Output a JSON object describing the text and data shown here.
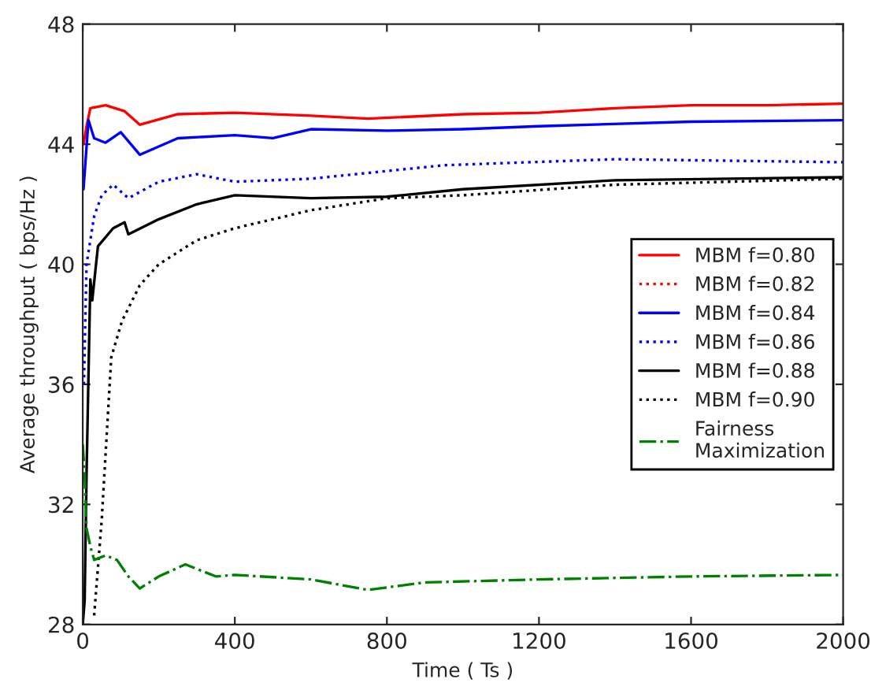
{
  "chart_data": {
    "type": "line",
    "xlabel": "Time ( Ts )",
    "ylabel": "Average throughput ( bps/Hz )",
    "xlim": [
      0,
      2000
    ],
    "xticks": [
      0,
      400,
      800,
      1200,
      1600,
      2000
    ],
    "ylim": [
      28,
      48
    ],
    "yticks": [
      28,
      32,
      36,
      40,
      44,
      48
    ],
    "grid": false,
    "legend": "right",
    "series": [
      {
        "name": "MBM f=0.80",
        "color": "#ff0000",
        "line_style": "solid",
        "x": [
          2,
          10,
          20,
          60,
          110,
          150,
          250,
          400,
          600,
          750,
          1000,
          1200,
          1400,
          1600,
          1800,
          2000
        ],
        "values": [
          44.0,
          44.6,
          45.2,
          45.3,
          45.1,
          44.65,
          45.0,
          45.05,
          44.95,
          44.85,
          45.0,
          45.05,
          45.2,
          45.3,
          45.3,
          45.35
        ]
      },
      {
        "name": "MBM f=0.82",
        "color": "#ff0000",
        "line_style": "dotted"
      },
      {
        "name": "MBM f=0.84",
        "color": "#0000ff",
        "line_style": "solid",
        "x": [
          2,
          15,
          30,
          60,
          100,
          150,
          250,
          400,
          500,
          600,
          800,
          1000,
          1200,
          1600,
          2000
        ],
        "values": [
          42.5,
          44.8,
          44.2,
          44.05,
          44.4,
          43.65,
          44.2,
          44.3,
          44.2,
          44.5,
          44.45,
          44.5,
          44.6,
          44.75,
          44.8
        ]
      },
      {
        "name": "MBM f=0.86",
        "color": "#0000ff",
        "line_style": "dotted",
        "x": [
          3,
          10,
          30,
          50,
          80,
          120,
          200,
          300,
          400,
          600,
          950,
          1400,
          2000
        ],
        "values": [
          36.0,
          40.0,
          41.6,
          42.3,
          42.65,
          42.2,
          42.75,
          43.0,
          42.75,
          42.85,
          43.3,
          43.5,
          43.4
        ]
      },
      {
        "name": "MBM f=0.88",
        "color": "#000000",
        "line_style": "solid",
        "x": [
          0,
          5,
          10,
          20,
          25,
          40,
          80,
          110,
          120,
          200,
          300,
          400,
          600,
          800,
          1000,
          1400,
          2000
        ],
        "values": [
          28.0,
          28.8,
          33.0,
          39.5,
          38.8,
          40.6,
          41.2,
          41.4,
          41.0,
          41.5,
          42.0,
          42.3,
          42.2,
          42.25,
          42.5,
          42.8,
          42.9
        ]
      },
      {
        "name": "MBM f=0.90",
        "color": "#000000",
        "line_style": "dotted",
        "x": [
          30,
          50,
          75,
          103,
          150,
          200,
          300,
          400,
          600,
          800,
          1000,
          1400,
          2000
        ],
        "values": [
          28.3,
          31.5,
          36.9,
          38.1,
          39.3,
          40.0,
          40.8,
          41.2,
          41.8,
          42.2,
          42.3,
          42.65,
          42.85
        ]
      },
      {
        "name": "Fairness\nMaximization",
        "color": "#008000",
        "line_style": "dashdot",
        "x": [
          0,
          5,
          10,
          20,
          30,
          60,
          90,
          120,
          150,
          200,
          270,
          350,
          400,
          600,
          750,
          900,
          1200,
          1600,
          2000
        ],
        "values": [
          34.0,
          33.0,
          31.2,
          30.6,
          30.15,
          30.3,
          30.15,
          29.6,
          29.2,
          29.6,
          30.0,
          29.6,
          29.65,
          29.5,
          29.15,
          29.4,
          29.5,
          29.6,
          29.65
        ]
      }
    ]
  }
}
